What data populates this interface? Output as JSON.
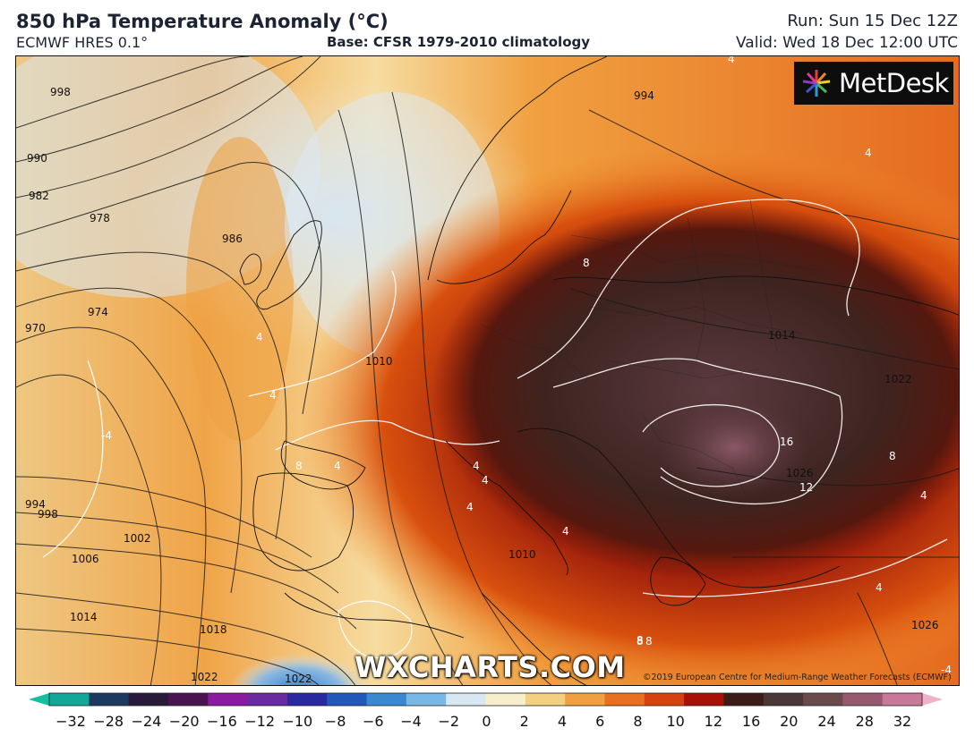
{
  "header": {
    "title": "850 hPa Temperature Anomaly (°C)",
    "model": "ECMWF HRES 0.1°",
    "base": "Base: CFSR 1979-2010 climatology",
    "run": "Run: Sun 15 Dec 12Z",
    "valid": "Valid: Wed 18 Dec 12:00 UTC"
  },
  "logo": {
    "text": "MetDesk"
  },
  "watermark": "WXCHARTS.COM",
  "copyright": "©2019 European Centre for Medium-Range Weather Forecasts (ECMWF)",
  "isobars": {
    "labels": [
      "998",
      "990",
      "982",
      "978",
      "986",
      "970",
      "974",
      "994",
      "998",
      "1002",
      "1006",
      "1014",
      "1018",
      "1022",
      "1022",
      "1010",
      "1010",
      "1014",
      "1022",
      "1026",
      "1026",
      "994"
    ]
  },
  "anomaly_contours": {
    "labels": [
      "8",
      "8",
      "4",
      "4",
      "4",
      "4",
      "4",
      "8",
      "16",
      "12",
      "8",
      "4",
      "4",
      "4",
      "-4",
      "4",
      "4",
      "8",
      "8",
      "-4",
      "4"
    ]
  },
  "colorbar": {
    "ticks": [
      "−32",
      "−28",
      "−24",
      "−20",
      "−16",
      "−12",
      "−10",
      "−8",
      "−6",
      "−4",
      "−2",
      "0",
      "2",
      "4",
      "6",
      "8",
      "10",
      "12",
      "16",
      "20",
      "24",
      "28",
      "32"
    ],
    "colors": [
      "#12a898",
      "#1c3a60",
      "#2a1a3a",
      "#4a1450",
      "#8a1aa0",
      "#6a2aa0",
      "#2a2aa0",
      "#2258b8",
      "#3a88d0",
      "#78b8e6",
      "#d8e8f2",
      "#f6eecc",
      "#f2d080",
      "#f0a040",
      "#e87020",
      "#d84010",
      "#a81008",
      "#3c1c18",
      "#4a3838",
      "#6a4a4a",
      "#985870",
      "#c87898"
    ],
    "extend_min_color": "#10c0a0",
    "extend_max_color": "#f0b0c8"
  }
}
